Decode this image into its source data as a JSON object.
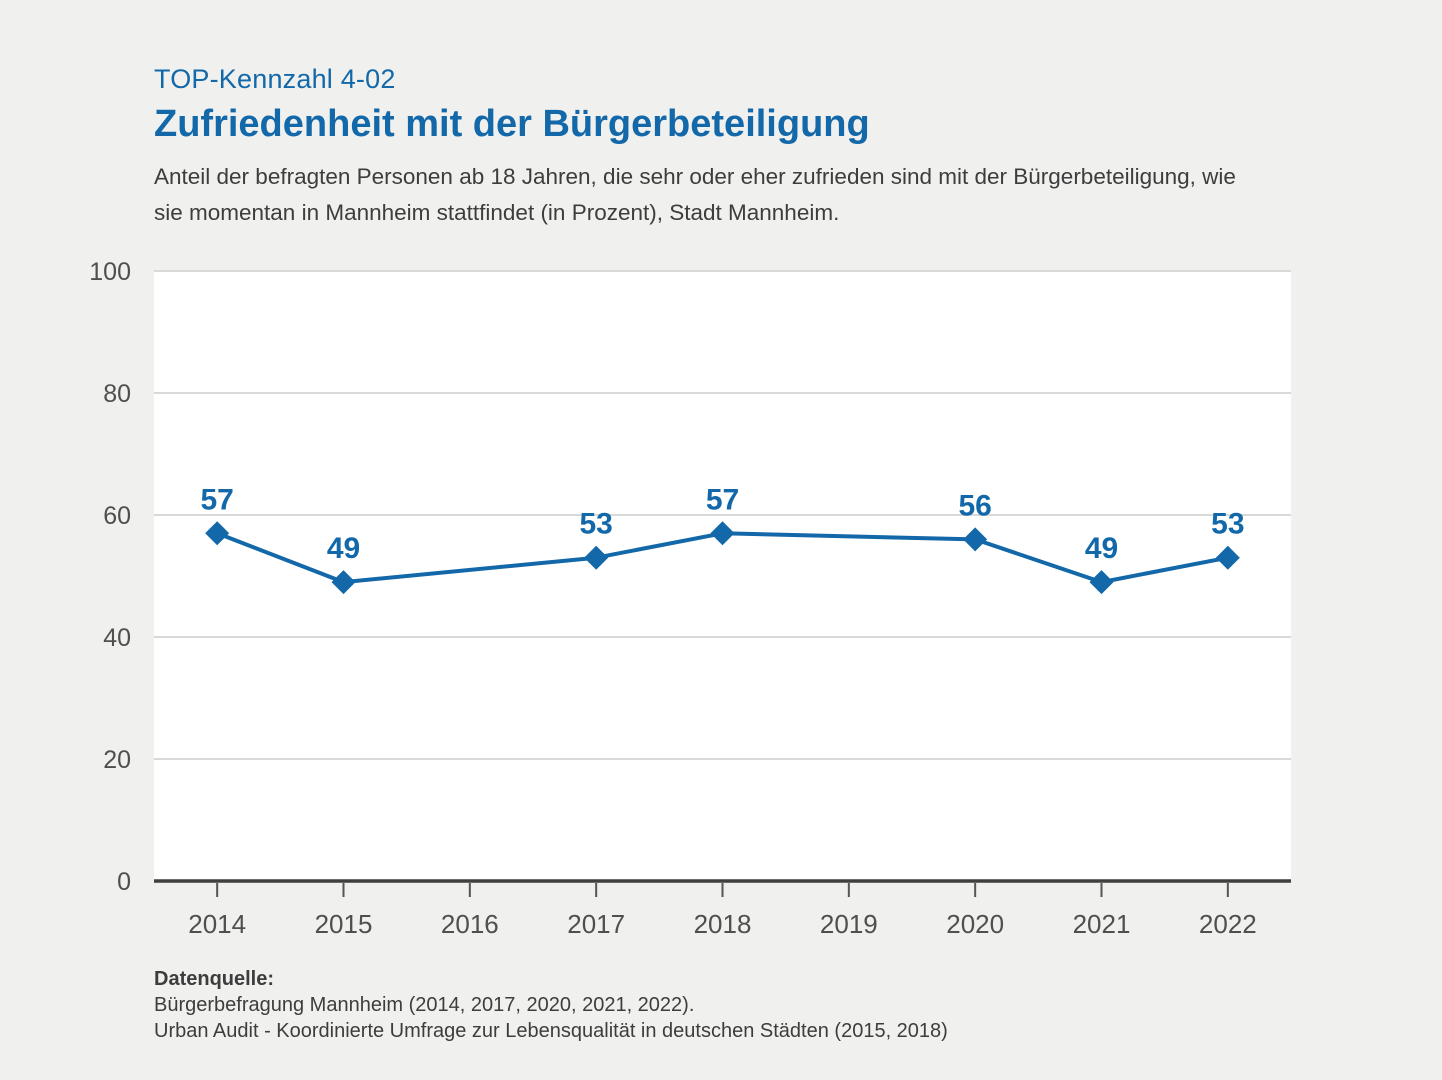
{
  "header": {
    "kicker": "TOP-Kennzahl 4-02",
    "title": "Zufriedenheit mit der Bürgerbeteiligung",
    "subtitle_line1": "Anteil der befragten Personen ab 18 Jahren, die sehr oder eher zufrieden sind mit der Bürgerbeteiligung, wie",
    "subtitle_line2": "sie momentan in Mannheim stattfindet (in Prozent), Stadt Mannheim."
  },
  "chart_data": {
    "type": "line",
    "title": "Zufriedenheit mit der Bürgerbeteiligung",
    "categories": [
      "2014",
      "2015",
      "2016",
      "2017",
      "2018",
      "2019",
      "2020",
      "2021",
      "2022"
    ],
    "values": [
      57,
      49,
      null,
      53,
      57,
      null,
      56,
      49,
      53
    ],
    "xlabel": "",
    "ylabel": "",
    "ylim": [
      0,
      100
    ],
    "yticks": [
      0,
      20,
      40,
      60,
      80,
      100
    ],
    "grid": true,
    "legend": "none",
    "marker": "diamond"
  },
  "colors": {
    "accent": "#1268a8",
    "background": "#f0f0ee",
    "plot_background": "#ffffff",
    "grid": "#d9d9d9",
    "axis": "#3f3f3f",
    "tick": "#555555",
    "tick_text": "#4f4f4f",
    "body_text": "#3d3d3d"
  },
  "footer": {
    "source_label": "Datenquelle:",
    "source_line1": "Bürgerbefragung Mannheim (2014, 2017, 2020, 2021, 2022).",
    "source_line2": "Urban Audit - Koordinierte Umfrage zur Lebensqualität in deutschen Städten (2015, 2018)"
  }
}
